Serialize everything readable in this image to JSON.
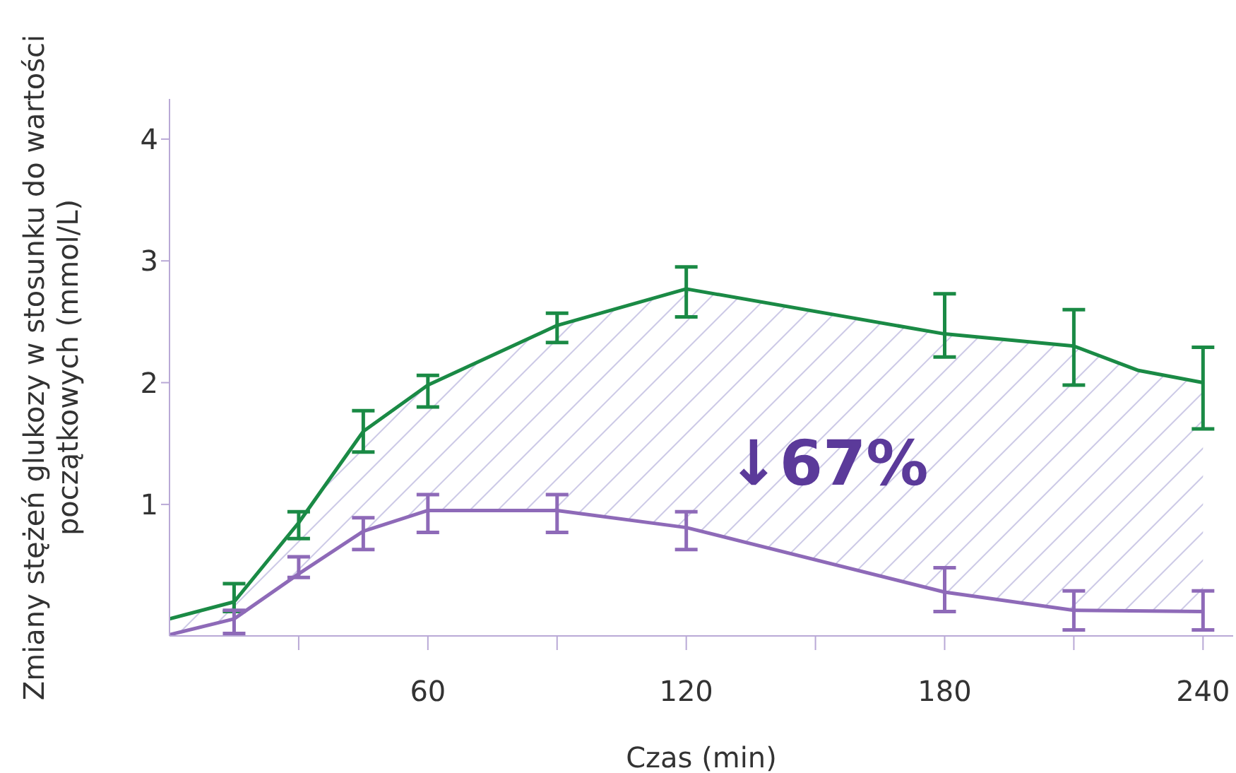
{
  "chart_data": {
    "type": "line",
    "xlabel": "Czas (min)",
    "ylabel": "Zmiany stężeń glukozy w stosunku do wartości\npoczątkowych (mmol/L)",
    "xlim": [
      0,
      247
    ],
    "xticks": [
      {
        "value": 30,
        "label": null
      },
      60,
      {
        "value": 90,
        "label": null
      },
      120,
      {
        "value": 150,
        "label": null
      },
      180,
      {
        "value": 210,
        "label": null
      },
      240
    ],
    "ylim": [
      -0.08,
      4.33
    ],
    "yticks": [
      1,
      2,
      3,
      4
    ],
    "grid": false,
    "legend": false,
    "marker": "none",
    "annotations": [
      "↓67%"
    ],
    "series": [
      {
        "color": "#1a8a45",
        "x": [
          0,
          15,
          30,
          45,
          60,
          90,
          120,
          180,
          210,
          225,
          240
        ],
        "values": [
          0.06,
          0.2,
          0.85,
          1.6,
          1.98,
          2.47,
          2.77,
          2.4,
          2.3,
          2.1,
          2.0
        ],
        "lower": [
          -0.07,
          0.06,
          0.43,
          0.78,
          0.95,
          0.95,
          0.81,
          0.28,
          0.13,
          0.12,
          0.12
        ],
        "upper": [
          0.06,
          0.2,
          0.85,
          1.6,
          1.98,
          2.47,
          2.77,
          2.4,
          2.3,
          2.1,
          2.0
        ],
        "errors": [
          null,
          [
            0.12,
            0.35
          ],
          [
            0.72,
            0.94
          ],
          [
            1.43,
            1.77
          ],
          [
            1.8,
            2.06
          ],
          [
            2.33,
            2.57
          ],
          [
            2.54,
            2.95
          ],
          [
            2.21,
            2.73
          ],
          [
            1.98,
            2.6
          ],
          null,
          [
            1.62,
            2.29
          ]
        ]
      },
      {
        "color": "#8e6ab8",
        "x": [
          0,
          15,
          30,
          45,
          60,
          90,
          120,
          180,
          210,
          240
        ],
        "values": [
          -0.07,
          0.06,
          0.43,
          0.78,
          0.95,
          0.95,
          0.81,
          0.28,
          0.13,
          0.12
        ],
        "errors": [
          null,
          [
            -0.06,
            0.13
          ],
          [
            0.4,
            0.57
          ],
          [
            0.63,
            0.89
          ],
          [
            0.77,
            1.08
          ],
          [
            0.77,
            1.08
          ],
          [
            0.63,
            0.94
          ],
          [
            0.12,
            0.48
          ],
          [
            -0.03,
            0.29
          ],
          [
            -0.03,
            0.29
          ]
        ]
      }
    ]
  }
}
